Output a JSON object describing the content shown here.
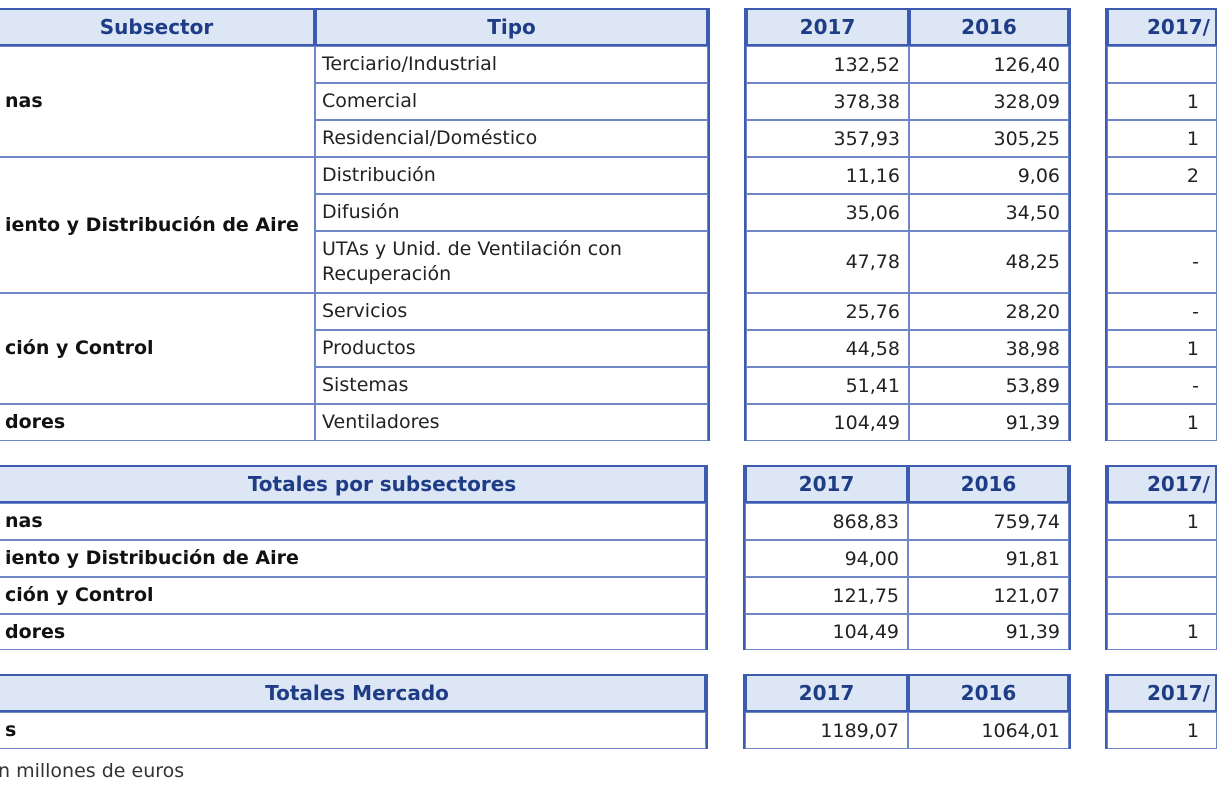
{
  "detail": {
    "headers": {
      "subsector": "Subsector",
      "tipo": "Tipo",
      "y2017": "2017",
      "y2016": "2016",
      "ratio": "2017/"
    },
    "groups": [
      {
        "label": "nas",
        "rows": [
          {
            "tipo": "Terciario/Industrial",
            "v2017": "132,52",
            "v2016": "126,40",
            "ratio": ""
          },
          {
            "tipo": "Comercial",
            "v2017": "378,38",
            "v2016": "328,09",
            "ratio": "1"
          },
          {
            "tipo": "Residencial/Doméstico",
            "v2017": "357,93",
            "v2016": "305,25",
            "ratio": "1"
          }
        ]
      },
      {
        "label": "iento y Distribución de Aire",
        "rows": [
          {
            "tipo": "Distribución",
            "v2017": "11,16",
            "v2016": "9,06",
            "ratio": "2"
          },
          {
            "tipo": "Difusión",
            "v2017": "35,06",
            "v2016": "34,50",
            "ratio": ""
          },
          {
            "tipo": "UTAs y Unid. de Ventilación con Recuperación",
            "v2017": "47,78",
            "v2016": "48,25",
            "ratio": "-"
          }
        ]
      },
      {
        "label": "ción y Control",
        "rows": [
          {
            "tipo": "Servicios",
            "v2017": "25,76",
            "v2016": "28,20",
            "ratio": "-"
          },
          {
            "tipo": "Productos",
            "v2017": "44,58",
            "v2016": "38,98",
            "ratio": "1"
          },
          {
            "tipo": "Sistemas",
            "v2017": "51,41",
            "v2016": "53,89",
            "ratio": "-"
          }
        ]
      },
      {
        "label": "dores",
        "rows": [
          {
            "tipo": "Ventiladores",
            "v2017": "104,49",
            "v2016": "91,39",
            "ratio": "1"
          }
        ]
      }
    ]
  },
  "subtotals": {
    "headers": {
      "title": "Totales por subsectores",
      "y2017": "2017",
      "y2016": "2016",
      "ratio": "2017/"
    },
    "rows": [
      {
        "label": "nas",
        "v2017": "868,83",
        "v2016": "759,74",
        "ratio": "1"
      },
      {
        "label": "iento y Distribución de Aire",
        "v2017": "94,00",
        "v2016": "91,81",
        "ratio": ""
      },
      {
        "label": "ción y Control",
        "v2017": "121,75",
        "v2016": "121,07",
        "ratio": ""
      },
      {
        "label": "dores",
        "v2017": "104,49",
        "v2016": "91,39",
        "ratio": "1"
      }
    ]
  },
  "market": {
    "headers": {
      "title": "Totales Mercado",
      "y2017": "2017",
      "y2016": "2016",
      "ratio": "2017/"
    },
    "row": {
      "label": "s",
      "v2017": "1189,07",
      "v2016": "1064,01",
      "ratio": "1"
    }
  },
  "note": "n millones de euros"
}
